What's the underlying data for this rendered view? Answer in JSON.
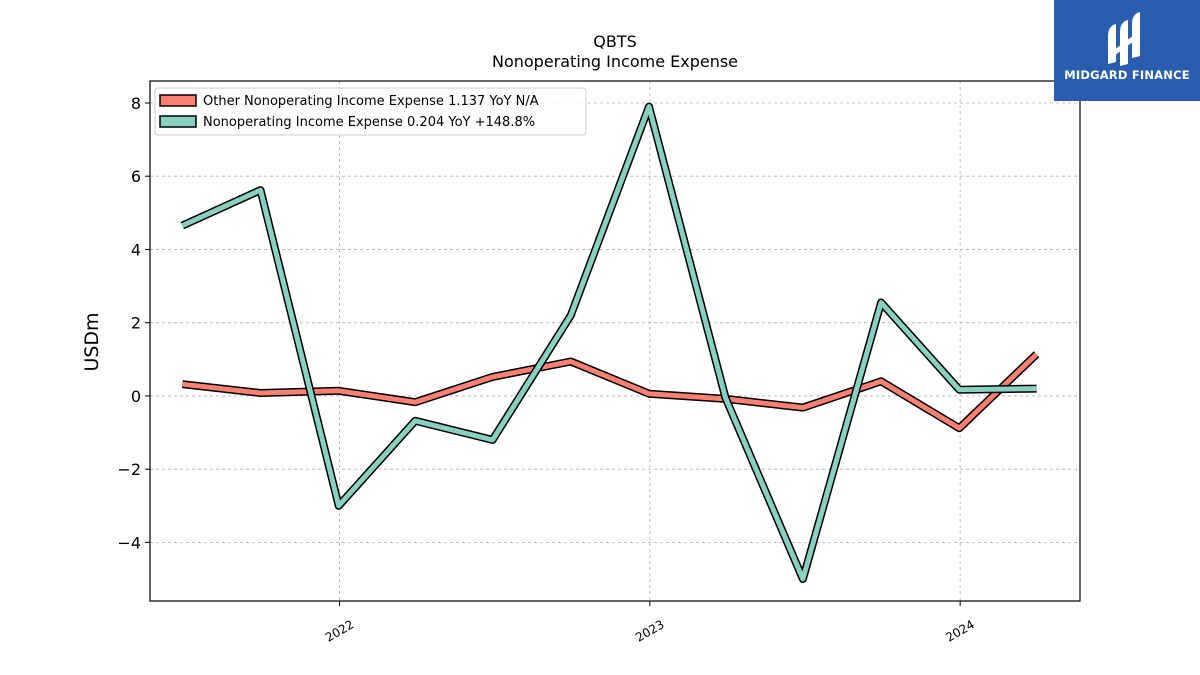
{
  "chart_data": {
    "type": "line",
    "title": "QBTS",
    "subtitle": "Nonoperating Income Expense",
    "xlabel": "",
    "ylabel": "USDm",
    "x_ticks": [
      "2022",
      "2023",
      "2024"
    ],
    "y_ticks": [
      "8",
      "6",
      "4",
      "2",
      "0",
      "−2",
      "−4"
    ],
    "ylim": [
      -5.6,
      8.6
    ],
    "xlim": [
      "2021-05-23",
      "2024-05-21"
    ],
    "grid": true,
    "legend_position": "upper-left",
    "x": [
      "2021-06-30",
      "2021-09-30",
      "2021-12-31",
      "2022-03-31",
      "2022-06-30",
      "2022-09-30",
      "2022-12-31",
      "2023-03-31",
      "2023-06-30",
      "2023-09-30",
      "2023-12-31",
      "2024-03-31"
    ],
    "series": [
      {
        "name": "Other Nonoperating Income Expense",
        "legend": "Other Nonoperating Income Expense  1.137 YoY N/A",
        "color": "#fa8072",
        "values": [
          0.32,
          0.08,
          0.14,
          -0.17,
          0.52,
          0.94,
          0.06,
          -0.08,
          -0.32,
          0.4,
          -0.88,
          1.14
        ]
      },
      {
        "name": "Nonoperating Income Expense",
        "legend": "Nonoperating Income Expense  0.204 YoY +148.8%",
        "color": "#88d0c0",
        "values": [
          4.65,
          5.62,
          -3.0,
          -0.68,
          -1.2,
          2.2,
          7.9,
          -0.05,
          -5.0,
          2.55,
          0.17,
          0.2
        ]
      }
    ]
  },
  "logo": {
    "text": "MIDGARD FINANCE"
  }
}
